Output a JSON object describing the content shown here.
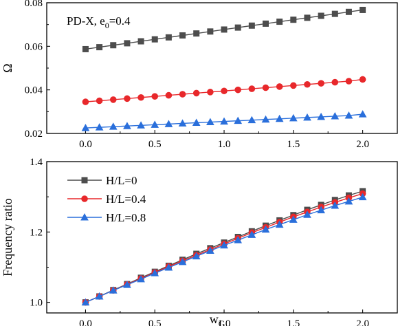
{
  "chart_data": [
    {
      "type": "line",
      "annotation": {
        "main": "PD-X, e",
        "sub": "0",
        "tail": "=0.4"
      },
      "xlabel": "",
      "ylabel": "Ω",
      "xlim": [
        -0.28,
        2.25
      ],
      "ylim": [
        0.02,
        0.08
      ],
      "xticks": [
        "0.0",
        "0.5",
        "1.0",
        "1.5",
        "2.0"
      ],
      "yticks": [
        "0.02",
        "0.04",
        "0.06",
        "0.08"
      ],
      "x": [
        0.0,
        0.1,
        0.2,
        0.3,
        0.4,
        0.5,
        0.6,
        0.7,
        0.8,
        0.9,
        1.0,
        1.1,
        1.2,
        1.3,
        1.4,
        1.5,
        1.6,
        1.7,
        1.8,
        1.9,
        2.0
      ],
      "series": [
        {
          "color": "#4d4d4d",
          "marker": "square",
          "values": [
            0.0587,
            0.0596,
            0.0605,
            0.0614,
            0.0623,
            0.0632,
            0.0641,
            0.065,
            0.0659,
            0.0668,
            0.0677,
            0.0686,
            0.0695,
            0.0704,
            0.0713,
            0.0722,
            0.0731,
            0.074,
            0.0749,
            0.0758,
            0.0767
          ]
        },
        {
          "color": "#e8282b",
          "marker": "circle",
          "values": [
            0.0345,
            0.035,
            0.0355,
            0.036,
            0.0365,
            0.037,
            0.0375,
            0.038,
            0.0385,
            0.039,
            0.0395,
            0.04,
            0.0405,
            0.041,
            0.0415,
            0.042,
            0.0425,
            0.043,
            0.0435,
            0.044,
            0.0448
          ]
        },
        {
          "color": "#2a6fdb",
          "marker": "triangle",
          "values": [
            0.0225,
            0.0228,
            0.0231,
            0.0234,
            0.0237,
            0.024,
            0.0243,
            0.0246,
            0.0249,
            0.0252,
            0.0255,
            0.0258,
            0.0261,
            0.0264,
            0.0267,
            0.027,
            0.0273,
            0.0276,
            0.0279,
            0.0282,
            0.0288
          ]
        }
      ]
    },
    {
      "type": "line",
      "xlabel": "w",
      "xlabel_sub": "G",
      "ylabel": "Frequency ratio",
      "xlim": [
        -0.28,
        2.25
      ],
      "ylim": [
        0.97,
        1.4
      ],
      "xticks": [
        "0.0",
        "0.5",
        "1.0",
        "1.5",
        "2.0"
      ],
      "yticks": [
        "1.0",
        "1.2",
        "1.4"
      ],
      "legend_position": "top-left",
      "x": [
        0.0,
        0.1,
        0.2,
        0.3,
        0.4,
        0.5,
        0.6,
        0.7,
        0.8,
        0.9,
        1.0,
        1.1,
        1.2,
        1.3,
        1.4,
        1.5,
        1.6,
        1.7,
        1.8,
        1.9,
        2.0
      ],
      "series": [
        {
          "name": "H/L=0",
          "color": "#4d4d4d",
          "marker": "square",
          "values": [
            1.0,
            1.017,
            1.035,
            1.052,
            1.07,
            1.087,
            1.104,
            1.121,
            1.138,
            1.154,
            1.17,
            1.186,
            1.202,
            1.218,
            1.233,
            1.248,
            1.263,
            1.277,
            1.291,
            1.304,
            1.316
          ]
        },
        {
          "name": "H/L=0.4",
          "color": "#e8282b",
          "marker": "circle",
          "values": [
            1.0,
            1.017,
            1.034,
            1.051,
            1.068,
            1.085,
            1.102,
            1.118,
            1.134,
            1.15,
            1.166,
            1.182,
            1.198,
            1.213,
            1.228,
            1.243,
            1.257,
            1.271,
            1.284,
            1.297,
            1.309
          ]
        },
        {
          "name": "H/L=0.8",
          "color": "#2a6fdb",
          "marker": "triangle",
          "values": [
            1.0,
            1.017,
            1.034,
            1.05,
            1.066,
            1.083,
            1.099,
            1.115,
            1.131,
            1.147,
            1.162,
            1.177,
            1.192,
            1.207,
            1.221,
            1.235,
            1.249,
            1.262,
            1.275,
            1.287,
            1.299
          ]
        }
      ]
    }
  ]
}
